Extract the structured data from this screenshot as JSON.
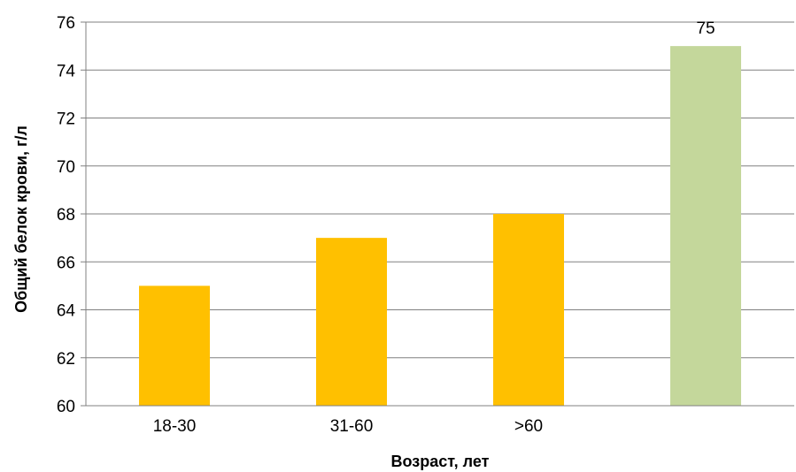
{
  "chart_data": {
    "type": "bar",
    "categories": [
      "18-30",
      "31-60",
      ">60",
      ""
    ],
    "values": [
      65,
      67,
      68,
      75
    ],
    "bar_colors": [
      "#FFC000",
      "#FFC000",
      "#FFC000",
      "#C4D79B"
    ],
    "data_labels": [
      "",
      "",
      "",
      "75"
    ],
    "xlabel": "Возраст, лет",
    "ylabel": "Общий белок крови, г/л",
    "ylim": [
      60,
      76
    ],
    "yticks": [
      60,
      62,
      64,
      66,
      68,
      70,
      72,
      74,
      76
    ],
    "grid": true,
    "gridline_color": "#808080",
    "axis_color": "#808080"
  }
}
